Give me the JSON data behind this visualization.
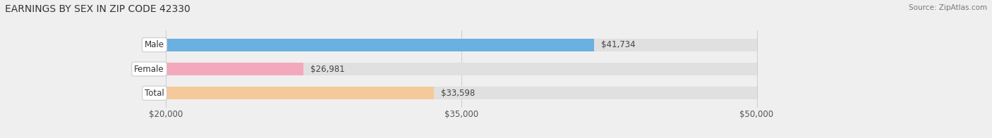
{
  "title": "EARNINGS BY SEX IN ZIP CODE 42330",
  "source": "Source: ZipAtlas.com",
  "categories": [
    "Male",
    "Female",
    "Total"
  ],
  "values": [
    41734,
    26981,
    33598
  ],
  "bar_colors": [
    "#6ab0e0",
    "#f4a8bc",
    "#f5c99a"
  ],
  "bar_labels": [
    "$41,734",
    "$26,981",
    "$33,598"
  ],
  "xmin": 20000,
  "xmax": 50000,
  "xticks": [
    20000,
    35000,
    50000
  ],
  "xtick_labels": [
    "$20,000",
    "$35,000",
    "$50,000"
  ],
  "background_color": "#efefef",
  "bar_bg_color": "#e0e0e0",
  "title_fontsize": 10,
  "tick_fontsize": 8.5,
  "label_fontsize": 8.5,
  "bar_height": 0.52
}
